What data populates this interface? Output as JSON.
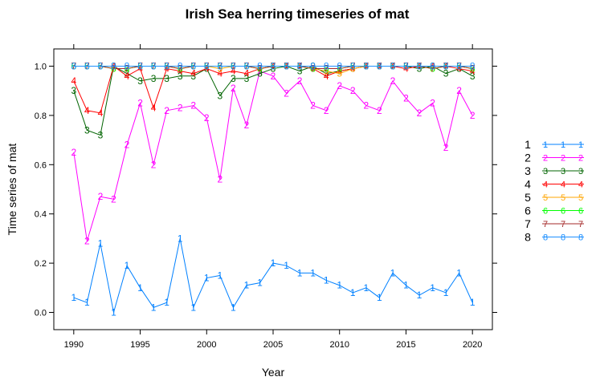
{
  "chart_data": {
    "type": "line",
    "title": "Irish Sea herring timeseries of mat",
    "xlabel": "Year",
    "ylabel": "Time series of mat",
    "xlim": [
      1988.5,
      2021.5
    ],
    "ylim": [
      -0.07,
      1.07
    ],
    "x_ticks": [
      "1990",
      "1995",
      "2000",
      "2005",
      "2010",
      "2015",
      "2020"
    ],
    "y_ticks": [
      "0.0",
      "0.2",
      "0.4",
      "0.6",
      "0.8",
      "1.0"
    ],
    "grid": false,
    "legend_position": "right",
    "x": [
      1990,
      1991,
      1992,
      1993,
      1994,
      1995,
      1996,
      1997,
      1998,
      1999,
      2000,
      2001,
      2002,
      2003,
      2004,
      2005,
      2006,
      2007,
      2008,
      2009,
      2010,
      2011,
      2012,
      2013,
      2014,
      2015,
      2016,
      2017,
      2018,
      2019,
      2020
    ],
    "series": [
      {
        "name": "1",
        "symbol": "1",
        "color": "#0080ff",
        "values": [
          0.06,
          0.04,
          0.28,
          0.0,
          0.19,
          0.1,
          0.02,
          0.04,
          0.3,
          0.02,
          0.14,
          0.15,
          0.02,
          0.11,
          0.12,
          0.2,
          0.19,
          0.16,
          0.16,
          0.13,
          0.11,
          0.08,
          0.1,
          0.06,
          0.16,
          0.11,
          0.07,
          0.1,
          0.08,
          0.16,
          0.04
        ]
      },
      {
        "name": "2",
        "symbol": "2",
        "color": "#ff00ff",
        "values": [
          0.65,
          0.29,
          0.47,
          0.46,
          0.68,
          0.85,
          0.6,
          0.82,
          0.83,
          0.84,
          0.79,
          0.54,
          0.91,
          0.76,
          0.98,
          0.96,
          0.89,
          0.94,
          0.84,
          0.82,
          0.92,
          0.9,
          0.84,
          0.82,
          0.94,
          0.87,
          0.81,
          0.85,
          0.67,
          0.9,
          0.8
        ]
      },
      {
        "name": "3",
        "symbol": "3",
        "color": "#006400",
        "values": [
          0.9,
          0.74,
          0.72,
          1.0,
          0.97,
          0.94,
          0.95,
          0.95,
          0.96,
          0.96,
          0.99,
          0.88,
          0.95,
          0.95,
          0.97,
          0.99,
          1.0,
          0.98,
          1.0,
          0.97,
          0.98,
          0.99,
          1.0,
          1.0,
          1.0,
          1.0,
          0.99,
          1.0,
          0.97,
          0.99,
          0.96
        ]
      },
      {
        "name": "4",
        "symbol": "4",
        "color": "#ff0000",
        "values": [
          0.94,
          0.82,
          0.81,
          1.0,
          0.96,
          0.99,
          0.83,
          0.99,
          0.98,
          0.97,
          0.99,
          0.97,
          0.98,
          0.97,
          0.99,
          1.0,
          1.0,
          1.0,
          0.99,
          0.96,
          0.98,
          0.99,
          1.0,
          1.0,
          1.0,
          0.99,
          1.0,
          1.0,
          1.0,
          0.99,
          0.98
        ]
      },
      {
        "name": "5",
        "symbol": "5",
        "color": "#ffa500",
        "values": [
          1.0,
          1.0,
          1.0,
          0.99,
          0.99,
          1.0,
          1.0,
          1.0,
          0.99,
          1.0,
          1.0,
          0.99,
          1.0,
          1.0,
          0.99,
          1.0,
          1.0,
          1.0,
          0.99,
          0.98,
          0.97,
          0.99,
          1.0,
          1.0,
          1.0,
          1.0,
          1.0,
          0.99,
          1.0,
          1.0,
          0.99
        ]
      },
      {
        "name": "6",
        "symbol": "6",
        "color": "#00ff00",
        "values": [
          1.0,
          1.0,
          1.0,
          0.99,
          0.99,
          1.0,
          1.0,
          1.0,
          0.99,
          1.0,
          1.0,
          1.0,
          1.0,
          1.0,
          0.99,
          1.0,
          1.0,
          1.0,
          0.99,
          0.99,
          0.99,
          1.0,
          1.0,
          1.0,
          1.0,
          1.0,
          1.0,
          0.99,
          1.0,
          1.0,
          0.99
        ]
      },
      {
        "name": "7",
        "symbol": "7",
        "color": "#a52a2a",
        "values": [
          1.0,
          1.0,
          1.0,
          0.99,
          0.99,
          1.0,
          1.0,
          1.0,
          0.99,
          1.0,
          1.0,
          1.0,
          1.0,
          1.0,
          0.99,
          1.0,
          1.0,
          1.0,
          0.99,
          0.99,
          0.99,
          1.0,
          1.0,
          1.0,
          1.0,
          1.0,
          1.0,
          0.99,
          1.0,
          1.0,
          0.99
        ]
      },
      {
        "name": "8",
        "symbol": "8",
        "color": "#1e90ff",
        "values": [
          1.0,
          1.0,
          1.0,
          1.0,
          1.0,
          1.0,
          1.0,
          1.0,
          1.0,
          1.0,
          1.0,
          1.0,
          1.0,
          1.0,
          1.0,
          1.0,
          1.0,
          1.0,
          1.0,
          1.0,
          1.0,
          1.0,
          1.0,
          1.0,
          1.0,
          1.0,
          1.0,
          1.0,
          1.0,
          1.0,
          1.0
        ]
      }
    ]
  }
}
